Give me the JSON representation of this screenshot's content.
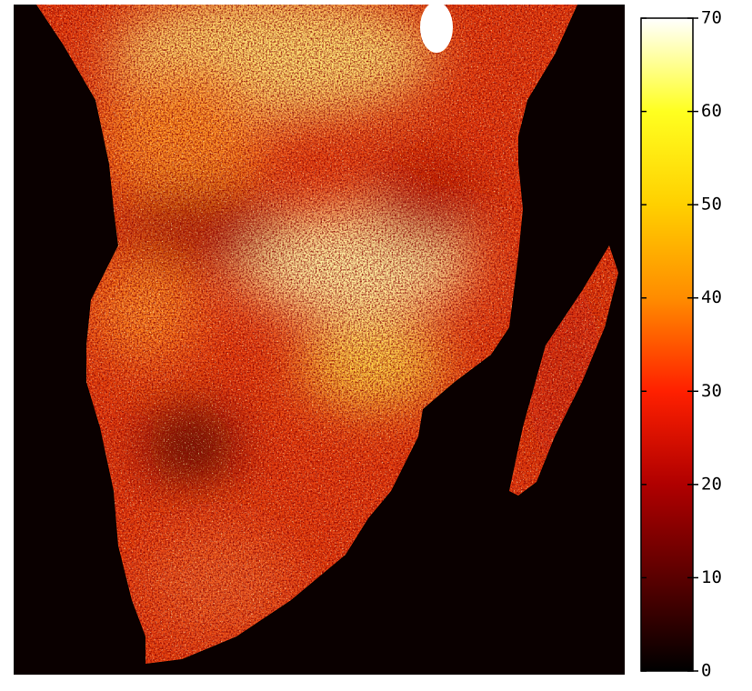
{
  "colorbar": {
    "range": [
      0,
      70
    ],
    "ticks": [
      0,
      10,
      20,
      30,
      40,
      50,
      60,
      70
    ],
    "colors": [
      "#000000",
      "#5a0000",
      "#b00000",
      "#ff2000",
      "#ff8c00",
      "#ffd000",
      "#ffff20",
      "#ffffff"
    ]
  }
}
